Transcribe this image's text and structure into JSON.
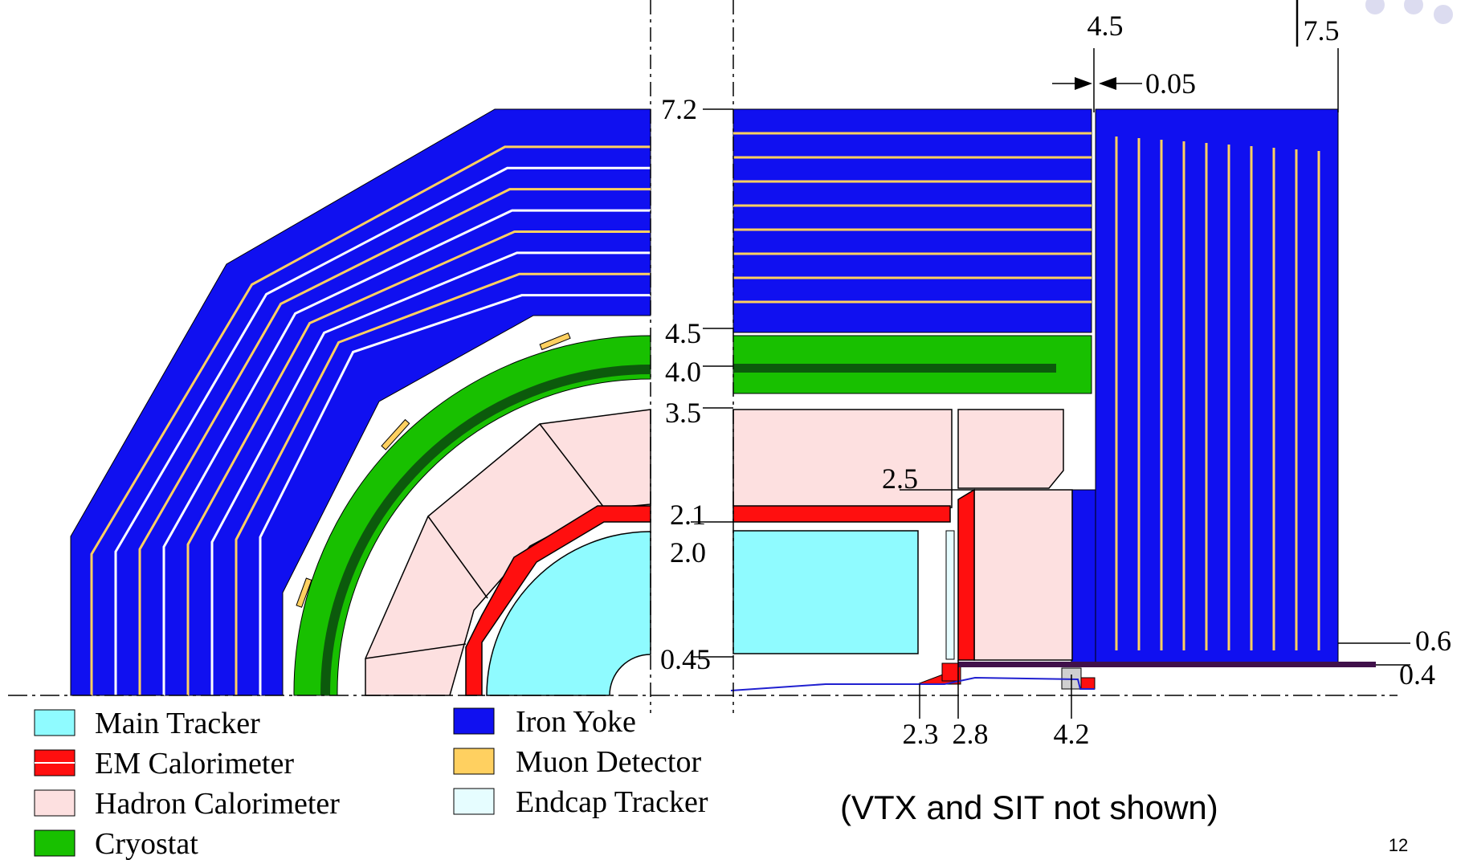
{
  "colors": {
    "main_tracker": "#8ffbff",
    "em_calorimeter": "#ff0f0f",
    "hadron_calorimeter": "#fde0e0",
    "cryostat": "#18c000",
    "cryostat_coil": "#0c5a0c",
    "iron_yoke": "#1010f0",
    "muon_detector": "#ffd060",
    "endcap_tracker": "#e6fdff",
    "beam_pipe": "#2020d0",
    "purple_bar": "#40104a",
    "gray_block": "#d0d0d0"
  },
  "dimensions": {
    "top_4_5": "4.5",
    "top_7_5": "7.5",
    "gap_0_05": "0.05",
    "r_7_2": "7.2",
    "r_4_5": "4.5",
    "r_4_0": "4.0",
    "r_3_5": "3.5",
    "r_2_5": "2.5",
    "r_2_1": "2.1",
    "r_2_0": "2.0",
    "r_0_45": "0.45",
    "right_0_6": "0.6",
    "right_0_4": "0.4",
    "z_2_3": "2.3",
    "z_2_8": "2.8",
    "z_4_2": "4.2"
  },
  "legend": [
    {
      "label": "Main Tracker",
      "color_key": "main_tracker"
    },
    {
      "label": "EM Calorimeter",
      "color_key": "em_calorimeter"
    },
    {
      "label": "Hadron Calorimeter",
      "color_key": "hadron_calorimeter"
    },
    {
      "label": "Cryostat",
      "color_key": "cryostat"
    },
    {
      "label": "Iron Yoke",
      "color_key": "iron_yoke"
    },
    {
      "label": "Muon Detector",
      "color_key": "muon_detector"
    },
    {
      "label": "Endcap Tracker",
      "color_key": "endcap_tracker"
    }
  ],
  "note": "(VTX and SIT not shown)",
  "page_number": "12"
}
